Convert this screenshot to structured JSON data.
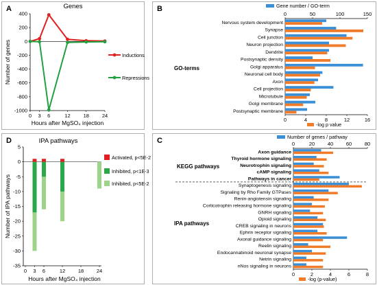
{
  "panels": {
    "A": {
      "label": "A",
      "title": "Genes"
    },
    "B": {
      "label": "B"
    },
    "C": {
      "label": "C"
    },
    "D": {
      "label": "D",
      "title": "IPA pathways"
    }
  },
  "colors": {
    "blue": "#3a8fd6",
    "orange": "#f07c2a",
    "red": "#e02020",
    "green": "#20a040",
    "dark_green": "#2aa84a",
    "light_green": "#9ed38a"
  },
  "chart_data": [
    {
      "id": "A",
      "type": "line",
      "title": "Genes",
      "xlabel": "Hours after MgSO₄ injection",
      "ylabel": "Number of genes",
      "xlim": [
        0,
        24
      ],
      "ylim": [
        -1000,
        400
      ],
      "xticks": [
        0,
        3,
        6,
        12,
        18,
        24
      ],
      "xtick_labels": [
        "0",
        "3",
        "6",
        "12",
        "18",
        "24"
      ],
      "yticks": [
        -1000,
        -800,
        -600,
        -400,
        -200,
        0,
        200,
        400
      ],
      "ytick_labels": [
        "-1000",
        "-800",
        "-600",
        "-400",
        "-200",
        "0",
        "200",
        "400"
      ],
      "series": [
        {
          "name": "Inductions",
          "color": "#e02020",
          "x": [
            0,
            3,
            6,
            12,
            18,
            24
          ],
          "y": [
            0,
            40,
            385,
            30,
            10,
            5
          ]
        },
        {
          "name": "Repressions",
          "color": "#20a040",
          "x": [
            0,
            3,
            6,
            12,
            18,
            24
          ],
          "y": [
            0,
            -5,
            -990,
            -15,
            -8,
            -5
          ]
        }
      ],
      "legend_placement": "right"
    },
    {
      "id": "B",
      "type": "bar",
      "orientation": "horizontal",
      "top_axis_label": "Gene number / GO-term",
      "bottom_axis_label": "-log p value",
      "group_label": "GO-terms",
      "top_xlim": [
        0,
        150
      ],
      "top_xticks": [
        0,
        50,
        100,
        150
      ],
      "bottom_xlim": [
        0,
        16
      ],
      "bottom_xticks": [
        0,
        4,
        8,
        12,
        16
      ],
      "categories": [
        "Nervous system development",
        "Synapse",
        "Cell junction",
        "Neuron projection",
        "Dendrite",
        "Postsynaptic density",
        "Golgi apparatus",
        "Neuronal cell body",
        "Axon",
        "Cell projection",
        "Microtubule",
        "Golgi membrane",
        "Postsynaptic membrane"
      ],
      "series": [
        {
          "name": "Gene number / GO-term",
          "color": "#3a8fd6",
          "axis": "top",
          "values": [
            75,
            93,
            112,
            80,
            80,
            50,
            142,
            68,
            60,
            88,
            45,
            55,
            40
          ]
        },
        {
          "name": "-log p value",
          "color": "#f07c2a",
          "axis": "bottom",
          "values": [
            7.2,
            15.2,
            13.1,
            11.8,
            8.2,
            8.8,
            5.8,
            6.8,
            5.7,
            5.0,
            4.2,
            3.5,
            2.2
          ]
        }
      ]
    },
    {
      "id": "C",
      "type": "bar",
      "orientation": "horizontal",
      "top_axis_label": "Number of genes / pathway",
      "bottom_axis_label": "-log (p-value)",
      "group_labels": [
        "KEGG pathways",
        "IPA pathways"
      ],
      "top_xlim": [
        0,
        80
      ],
      "top_xticks": [
        0,
        20,
        40,
        60,
        80
      ],
      "bottom_xlim": [
        0,
        8
      ],
      "bottom_xticks": [
        0,
        2,
        4,
        6,
        8
      ],
      "categories": [
        "Axon guidance",
        "Thyroid hormone signaling",
        "Neurotrophin signaling",
        "cAMP signaling",
        "Pathways in cancer",
        "Synaptogenesis signaling",
        "Signaling by Rho Family GTPases",
        "Renin-angiotensin signaling",
        "Corticotrophin releasing hormone signaling",
        "GNRH signaling",
        "Opioid signaling",
        "CREB signaling in neurons",
        "Ephrin receptor signaling",
        "Axonal guidance signaling",
        "Reelin signaling",
        "Endocannabinoid neuronal synapse",
        "Netrin signaling",
        "nNos signaling in neurons"
      ],
      "bold_categories": [
        "Axon guidance",
        "Thyroid hormone signaling",
        "Neurotrophin signaling",
        "cAMP signaling",
        "Pathways in cancer"
      ],
      "series": [
        {
          "name": "Number of genes / pathway",
          "color": "#3a8fd6",
          "axis": "top",
          "values": [
            30,
            25,
            22,
            28,
            50,
            60,
            38,
            22,
            20,
            18,
            26,
            32,
            26,
            58,
            16,
            20,
            14,
            14
          ]
        },
        {
          "name": "-log (p-value)",
          "color": "#f07c2a",
          "axis": "bottom",
          "values": [
            4.3,
            3.6,
            3.3,
            3.8,
            2.8,
            7.4,
            4.8,
            3.8,
            3.4,
            3.2,
            3.5,
            3.3,
            3.6,
            3.2,
            4.0,
            3.5,
            3.2,
            3.2
          ]
        }
      ]
    },
    {
      "id": "D",
      "type": "bar",
      "title": "IPA pathways",
      "xlabel": "Hours after MgSO₄ injection",
      "ylabel": "Number of IPA pathways",
      "xlim": [
        0,
        24
      ],
      "ylim": [
        -35,
        5
      ],
      "xticks": [
        0,
        3,
        6,
        12,
        18,
        24
      ],
      "xtick_labels": [
        "0",
        "3",
        "6",
        "12",
        "18",
        "24"
      ],
      "yticks": [
        -35,
        -30,
        -25,
        -20,
        -15,
        -10,
        -5,
        0,
        5
      ],
      "ytick_labels": [
        "-35",
        "-30",
        "-25",
        "-20",
        "-15",
        "-10",
        "-5",
        "0",
        "5"
      ],
      "series": [
        {
          "name": "Activated, p<5E-2",
          "color": "#e02020",
          "x": [
            3,
            6,
            12
          ],
          "values": [
            1,
            1,
            1
          ]
        },
        {
          "name": "Inhibited, p<1E-3",
          "color": "#2aa84a",
          "x": [
            3,
            6,
            12,
            24
          ],
          "values": [
            -17,
            -5,
            -10,
            0
          ]
        },
        {
          "name": "Inhibited, p<5E-2",
          "color": "#9ed38a",
          "x": [
            3,
            6,
            12,
            24
          ],
          "values": [
            -30,
            -16,
            -20,
            -9
          ]
        }
      ],
      "legend_placement": "right"
    }
  ]
}
